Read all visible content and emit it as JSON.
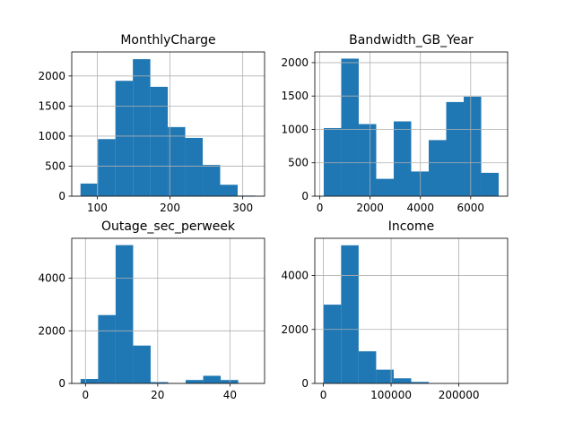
{
  "colors": {
    "bar": "#1f77b4",
    "grid": "#b0b0b0",
    "axis": "#000000"
  },
  "chart_data": [
    {
      "type": "bar",
      "title": "MonthlyCharge",
      "grid": true,
      "bin_edges": [
        77,
        101,
        125,
        149,
        173,
        197,
        221,
        245,
        269,
        293,
        317
      ],
      "values": [
        210,
        950,
        1920,
        2280,
        1820,
        1150,
        970,
        520,
        190,
        10
      ],
      "xlim": [
        65,
        330
      ],
      "ylim": [
        0,
        2400
      ],
      "xticks": [
        100,
        200,
        300
      ],
      "xtick_labels": [
        "100",
        "200",
        "300"
      ],
      "yticks": [
        0,
        500,
        1000,
        1500,
        2000
      ],
      "ytick_labels": [
        "0",
        "500",
        "1000",
        "1500",
        "2000"
      ]
    },
    {
      "type": "bar",
      "title": "Bandwidth_GB_Year",
      "grid": true,
      "bin_edges": [
        155,
        851,
        1547,
        2243,
        2939,
        3635,
        4331,
        5027,
        5723,
        6419,
        7115
      ],
      "values": [
        1020,
        2060,
        1080,
        260,
        1120,
        370,
        840,
        1410,
        1490,
        350
      ],
      "xlim": [
        -200,
        7470
      ],
      "ylim": [
        0,
        2160
      ],
      "xticks": [
        0,
        2000,
        4000,
        6000
      ],
      "xtick_labels": [
        "0",
        "2000",
        "4000",
        "6000"
      ],
      "yticks": [
        0,
        500,
        1000,
        1500,
        2000
      ],
      "ytick_labels": [
        "0",
        "500",
        "1000",
        "1500",
        "2000"
      ]
    },
    {
      "type": "bar",
      "title": "Outage_sec_perweek",
      "grid": true,
      "bin_edges": [
        -1.35,
        3.5,
        8.35,
        13.2,
        18.05,
        22.9,
        27.75,
        32.6,
        37.45,
        42.3,
        47.15
      ],
      "values": [
        170,
        2600,
        5260,
        1440,
        50,
        10,
        130,
        290,
        130,
        10
      ],
      "xlim": [
        -3.8,
        49.6
      ],
      "ylim": [
        0,
        5520
      ],
      "xticks": [
        0,
        20,
        40
      ],
      "xtick_labels": [
        "0",
        "20",
        "40"
      ],
      "yticks": [
        0,
        2000,
        4000
      ],
      "ytick_labels": [
        "0",
        "2000",
        "4000"
      ]
    },
    {
      "type": "bar",
      "title": "Income",
      "grid": true,
      "bin_edges": [
        348,
        26217,
        52086,
        77955,
        103824,
        129693,
        155562,
        181431,
        207300,
        233169,
        259038
      ],
      "values": [
        2920,
        5120,
        1190,
        510,
        190,
        55,
        10,
        5,
        0,
        5
      ],
      "xlim": [
        -12600,
        272000
      ],
      "ylim": [
        0,
        5380
      ],
      "xticks": [
        0,
        100000,
        200000
      ],
      "xtick_labels": [
        "0",
        "100000",
        "200000"
      ],
      "yticks": [
        0,
        2000,
        4000
      ],
      "ytick_labels": [
        "0",
        "2000",
        "4000"
      ]
    }
  ]
}
